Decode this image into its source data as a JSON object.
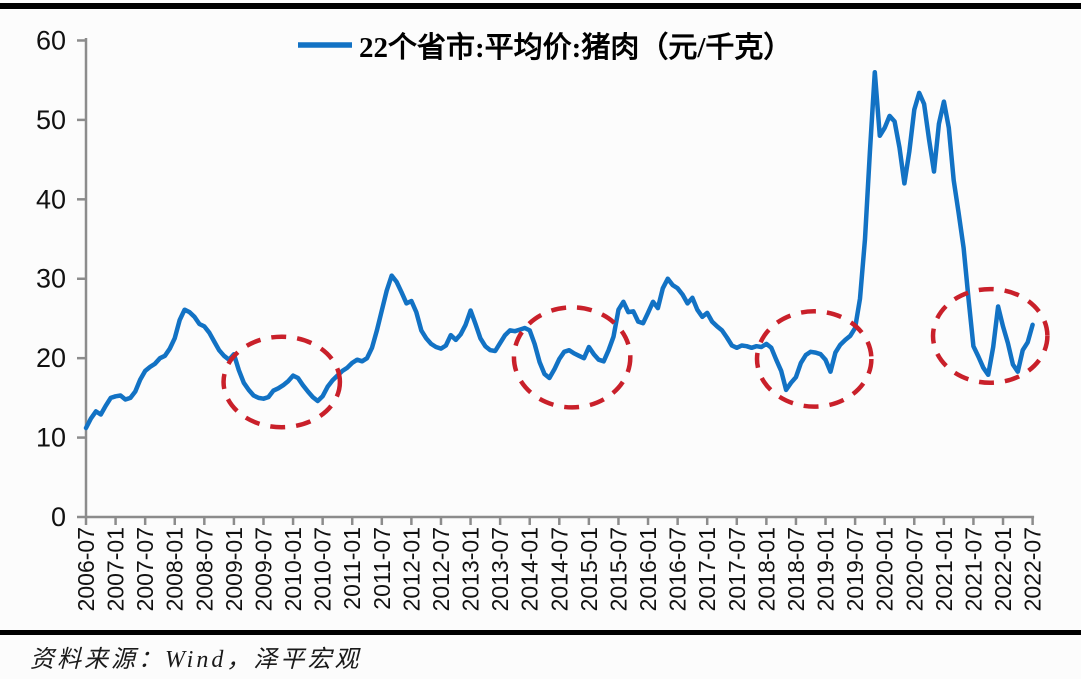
{
  "page": {
    "background_color": "#fcfcfc"
  },
  "colors": {
    "line_blue": "#1272c4",
    "annotation_red": "#c9202a",
    "axis_gray": "#8c8c8c",
    "label_text": "#111111",
    "rule_black": "#000000"
  },
  "legend": {
    "label": "22个省市:平均价:猪肉（元/千克）"
  },
  "source": {
    "text": "资料来源：Wind，泽平宏观"
  },
  "chart_data": {
    "type": "line",
    "title": "",
    "legend_position": "top",
    "grid": false,
    "ylim": [
      0,
      60
    ],
    "y_ticks": [
      0,
      10,
      20,
      30,
      40,
      50,
      60
    ],
    "x_tick_labels": [
      "2006-07",
      "2007-01",
      "2007-07",
      "2008-01",
      "2008-07",
      "2009-01",
      "2009-07",
      "2010-01",
      "2010-07",
      "2011-01",
      "2011-07",
      "2012-01",
      "2012-07",
      "2013-01",
      "2013-07",
      "2014-01",
      "2014-07",
      "2015-01",
      "2015-07",
      "2016-01",
      "2016-07",
      "2017-01",
      "2017-07",
      "2018-01",
      "2018-07",
      "2019-01",
      "2019-07",
      "2020-01",
      "2020-07",
      "2021-01",
      "2021-07",
      "2022-01",
      "2022-07"
    ],
    "series": [
      {
        "name": "22个省市:平均价:猪肉（元/千克）",
        "color": "#1272c4",
        "unit": "元/千克",
        "x_start": "2006-07",
        "x_end": "2022-07",
        "frequency": "monthly",
        "values": [
          11.2,
          12.4,
          13.3,
          12.9,
          14.0,
          15.0,
          15.2,
          15.3,
          14.8,
          15.0,
          15.8,
          17.3,
          18.4,
          18.9,
          19.3,
          20.0,
          20.3,
          21.2,
          22.5,
          24.8,
          26.1,
          25.8,
          25.2,
          24.3,
          24.0,
          23.2,
          22.1,
          21.0,
          20.3,
          19.8,
          20.5,
          18.5,
          16.9,
          16.0,
          15.3,
          15.0,
          14.9,
          15.1,
          15.9,
          16.2,
          16.6,
          17.1,
          17.8,
          17.5,
          16.6,
          15.8,
          15.1,
          14.6,
          15.2,
          16.4,
          17.2,
          17.8,
          18.4,
          18.8,
          19.4,
          19.8,
          19.6,
          20.0,
          21.3,
          23.5,
          26.0,
          28.5,
          30.4,
          29.6,
          28.3,
          26.9,
          27.2,
          25.8,
          23.5,
          22.5,
          21.8,
          21.4,
          21.2,
          21.6,
          22.9,
          22.3,
          23.0,
          24.2,
          26.0,
          24.3,
          22.5,
          21.5,
          21.0,
          20.9,
          21.9,
          22.9,
          23.5,
          23.4,
          23.6,
          23.8,
          23.5,
          21.8,
          19.5,
          18.0,
          17.5,
          18.6,
          19.9,
          20.8,
          21.0,
          20.6,
          20.3,
          20.0,
          21.4,
          20.5,
          19.8,
          19.6,
          21.0,
          22.7,
          26.1,
          27.1,
          25.8,
          25.9,
          24.6,
          24.4,
          25.7,
          27.1,
          26.3,
          28.8,
          30.0,
          29.2,
          28.8,
          28.0,
          26.9,
          27.6,
          26.1,
          25.2,
          25.7,
          24.6,
          24.0,
          23.5,
          22.6,
          21.6,
          21.3,
          21.6,
          21.5,
          21.3,
          21.5,
          21.4,
          21.8,
          21.3,
          19.8,
          18.4,
          16.0,
          16.9,
          17.6,
          19.4,
          20.4,
          20.8,
          20.7,
          20.5,
          19.8,
          18.3,
          20.7,
          21.7,
          22.3,
          22.8,
          23.8,
          27.5,
          35.0,
          46.0,
          56.0,
          48.0,
          49.0,
          50.5,
          49.8,
          46.5,
          42.0,
          46.0,
          51.3,
          53.4,
          52.0,
          47.5,
          43.5,
          49.5,
          52.3,
          49.0,
          42.4,
          38.3,
          33.9,
          27.5,
          21.5,
          20.2,
          18.8,
          17.9,
          21.4,
          26.5,
          24.0,
          21.9,
          19.2,
          18.3,
          21.0,
          22.0,
          24.2
        ]
      }
    ],
    "annotations": [
      {
        "shape": "dashed-ellipse",
        "center_x_month": 39.7,
        "center_value": 17.0,
        "radius_months": 11.8,
        "radius_value": 5.7
      },
      {
        "shape": "dashed-ellipse",
        "center_x_month": 98.6,
        "center_value": 20.1,
        "radius_months": 11.8,
        "radius_value": 6.3
      },
      {
        "shape": "dashed-ellipse",
        "center_x_month": 147.7,
        "center_value": 19.9,
        "radius_months": 11.6,
        "radius_value": 6.0
      },
      {
        "shape": "dashed-ellipse",
        "center_x_month": 183.4,
        "center_value": 22.8,
        "radius_months": 11.6,
        "radius_value": 5.9
      }
    ]
  }
}
